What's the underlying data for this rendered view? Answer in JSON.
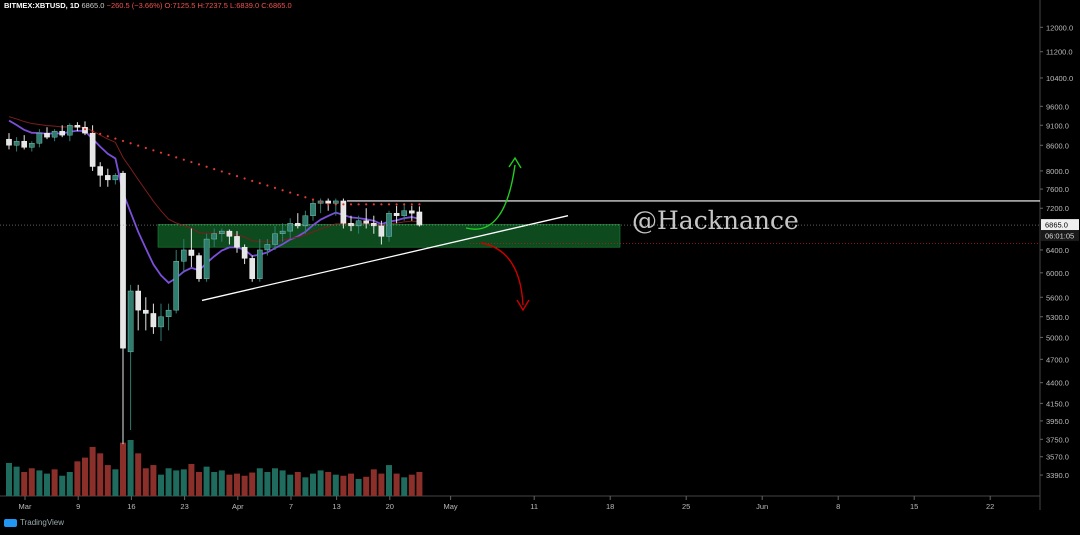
{
  "header": {
    "symbol": "BITMEX:XBTUSD, 1D",
    "last": "6865.0",
    "change": "−260.5 (−3.66%)",
    "ohlc": "O:7125.5 H:7237.5 L:6839.0 C:6865.0"
  },
  "watermark": "@Hacknance",
  "footer": {
    "brand": "TradingView"
  },
  "colors": {
    "background": "#000000",
    "up_candle": "#2e7d6f",
    "down_candle": "#e6e6e6",
    "volume_up": "#1f6b5e",
    "volume_down": "#8a2f2a",
    "ma_fast": "#7b4fd9",
    "ma_slow": "#7a1e1e",
    "sar_dots": "#e53935",
    "support_zone": "#0d4a1e",
    "bullish_arrow": "#22cc22",
    "bearish_arrow": "#cc0000"
  },
  "chart_data": {
    "type": "candlestick",
    "y_scale": "log",
    "ylim": [
      3250,
      12600
    ],
    "x_ticks": [
      "Mar",
      "9",
      "16",
      "23",
      "Apr",
      "7",
      "13",
      "20",
      "May",
      "11",
      "18",
      "25",
      "Jun",
      "8",
      "15",
      "22"
    ],
    "y_ticks": [
      "12000.0",
      "11200.0",
      "10400.0",
      "9600.0",
      "9100.0",
      "8600.0",
      "8000.0",
      "7600.0",
      "7200.0",
      "6865.0",
      "6400.0",
      "6000.0",
      "5600.0",
      "5300.0",
      "5000.0",
      "4700.0",
      "4400.0",
      "4150.0",
      "3950.0",
      "3750.0",
      "3570.0",
      "3390.0"
    ],
    "last_price_label": "6865.0",
    "countdown_label": "06:01:05",
    "candles": [
      {
        "o": 8750,
        "h": 8900,
        "l": 8500,
        "c": 8600
      },
      {
        "o": 8600,
        "h": 8800,
        "l": 8450,
        "c": 8700
      },
      {
        "o": 8700,
        "h": 8850,
        "l": 8500,
        "c": 8550
      },
      {
        "o": 8550,
        "h": 8700,
        "l": 8450,
        "c": 8650
      },
      {
        "o": 8650,
        "h": 9000,
        "l": 8550,
        "c": 8900
      },
      {
        "o": 8900,
        "h": 9050,
        "l": 8750,
        "c": 8800
      },
      {
        "o": 8800,
        "h": 9000,
        "l": 8700,
        "c": 8950
      },
      {
        "o": 8950,
        "h": 9100,
        "l": 8800,
        "c": 8850
      },
      {
        "o": 8850,
        "h": 9150,
        "l": 8700,
        "c": 9100
      },
      {
        "o": 9100,
        "h": 9180,
        "l": 8950,
        "c": 9050
      },
      {
        "o": 9050,
        "h": 9200,
        "l": 8850,
        "c": 8900
      },
      {
        "o": 8900,
        "h": 9100,
        "l": 8000,
        "c": 8100
      },
      {
        "o": 8100,
        "h": 8200,
        "l": 7650,
        "c": 7900
      },
      {
        "o": 7900,
        "h": 8050,
        "l": 7650,
        "c": 7800
      },
      {
        "o": 7800,
        "h": 7950,
        "l": 7700,
        "c": 7900
      },
      {
        "o": 7950,
        "h": 8000,
        "l": 3700,
        "c": 4850
      },
      {
        "o": 4800,
        "h": 5800,
        "l": 3850,
        "c": 5700
      },
      {
        "o": 5700,
        "h": 5800,
        "l": 5100,
        "c": 5400
      },
      {
        "o": 5400,
        "h": 5600,
        "l": 5100,
        "c": 5350
      },
      {
        "o": 5350,
        "h": 5500,
        "l": 5050,
        "c": 5150
      },
      {
        "o": 5150,
        "h": 5500,
        "l": 4950,
        "c": 5300
      },
      {
        "o": 5300,
        "h": 5500,
        "l": 5100,
        "c": 5400
      },
      {
        "o": 5400,
        "h": 6400,
        "l": 5350,
        "c": 6200
      },
      {
        "o": 6200,
        "h": 6600,
        "l": 6000,
        "c": 6400
      },
      {
        "o": 6400,
        "h": 6800,
        "l": 6100,
        "c": 6300
      },
      {
        "o": 6300,
        "h": 6350,
        "l": 5850,
        "c": 5900
      },
      {
        "o": 5900,
        "h": 6700,
        "l": 5850,
        "c": 6600
      },
      {
        "o": 6600,
        "h": 6800,
        "l": 6450,
        "c": 6700
      },
      {
        "o": 6700,
        "h": 6800,
        "l": 6550,
        "c": 6750
      },
      {
        "o": 6750,
        "h": 6780,
        "l": 6500,
        "c": 6650
      },
      {
        "o": 6650,
        "h": 6750,
        "l": 6350,
        "c": 6450
      },
      {
        "o": 6450,
        "h": 6500,
        "l": 6150,
        "c": 6250
      },
      {
        "o": 6250,
        "h": 6300,
        "l": 5850,
        "c": 5900
      },
      {
        "o": 5900,
        "h": 6600,
        "l": 5850,
        "c": 6400
      },
      {
        "o": 6400,
        "h": 6600,
        "l": 6300,
        "c": 6500
      },
      {
        "o": 6500,
        "h": 6850,
        "l": 6400,
        "c": 6700
      },
      {
        "o": 6700,
        "h": 6900,
        "l": 6550,
        "c": 6750
      },
      {
        "o": 6750,
        "h": 7000,
        "l": 6600,
        "c": 6900
      },
      {
        "o": 6900,
        "h": 7100,
        "l": 6800,
        "c": 6850
      },
      {
        "o": 6850,
        "h": 7150,
        "l": 6700,
        "c": 7050
      },
      {
        "o": 7050,
        "h": 7400,
        "l": 6950,
        "c": 7300
      },
      {
        "o": 7300,
        "h": 7400,
        "l": 7100,
        "c": 7350
      },
      {
        "o": 7350,
        "h": 7400,
        "l": 7150,
        "c": 7300
      },
      {
        "o": 7300,
        "h": 7400,
        "l": 7050,
        "c": 7350
      },
      {
        "o": 7350,
        "h": 7400,
        "l": 6800,
        "c": 6900
      },
      {
        "o": 6900,
        "h": 7050,
        "l": 6750,
        "c": 6850
      },
      {
        "o": 6850,
        "h": 7050,
        "l": 6700,
        "c": 6950
      },
      {
        "o": 6950,
        "h": 7200,
        "l": 6800,
        "c": 6900
      },
      {
        "o": 6900,
        "h": 7050,
        "l": 6700,
        "c": 6850
      },
      {
        "o": 6850,
        "h": 6950,
        "l": 6500,
        "c": 6650
      },
      {
        "o": 6650,
        "h": 7150,
        "l": 6550,
        "c": 7100
      },
      {
        "o": 7100,
        "h": 7250,
        "l": 6900,
        "c": 7050
      },
      {
        "o": 7050,
        "h": 7300,
        "l": 6950,
        "c": 7150
      },
      {
        "o": 7150,
        "h": 7250,
        "l": 6950,
        "c": 7100
      },
      {
        "o": 7125.5,
        "h": 7237.5,
        "l": 6839,
        "c": 6865
      }
    ],
    "volume": [
      62,
      55,
      45,
      52,
      48,
      42,
      50,
      38,
      45,
      65,
      72,
      92,
      80,
      58,
      50,
      100,
      105,
      80,
      52,
      58,
      40,
      52,
      48,
      50,
      60,
      45,
      55,
      45,
      48,
      40,
      42,
      38,
      44,
      52,
      45,
      52,
      48,
      40,
      45,
      35,
      42,
      48,
      45,
      40,
      38,
      42,
      32,
      36,
      50,
      42,
      58,
      42,
      35,
      40,
      45
    ],
    "volume_up_flags": [
      1,
      1,
      0,
      0,
      1,
      1,
      0,
      1,
      1,
      0,
      0,
      0,
      0,
      0,
      1,
      0,
      1,
      0,
      0,
      0,
      1,
      1,
      1,
      1,
      0,
      0,
      1,
      1,
      1,
      0,
      0,
      0,
      0,
      1,
      1,
      1,
      1,
      1,
      0,
      1,
      1,
      1,
      0,
      1,
      0,
      0,
      1,
      0,
      0,
      0,
      1,
      0,
      1,
      0,
      0
    ]
  }
}
